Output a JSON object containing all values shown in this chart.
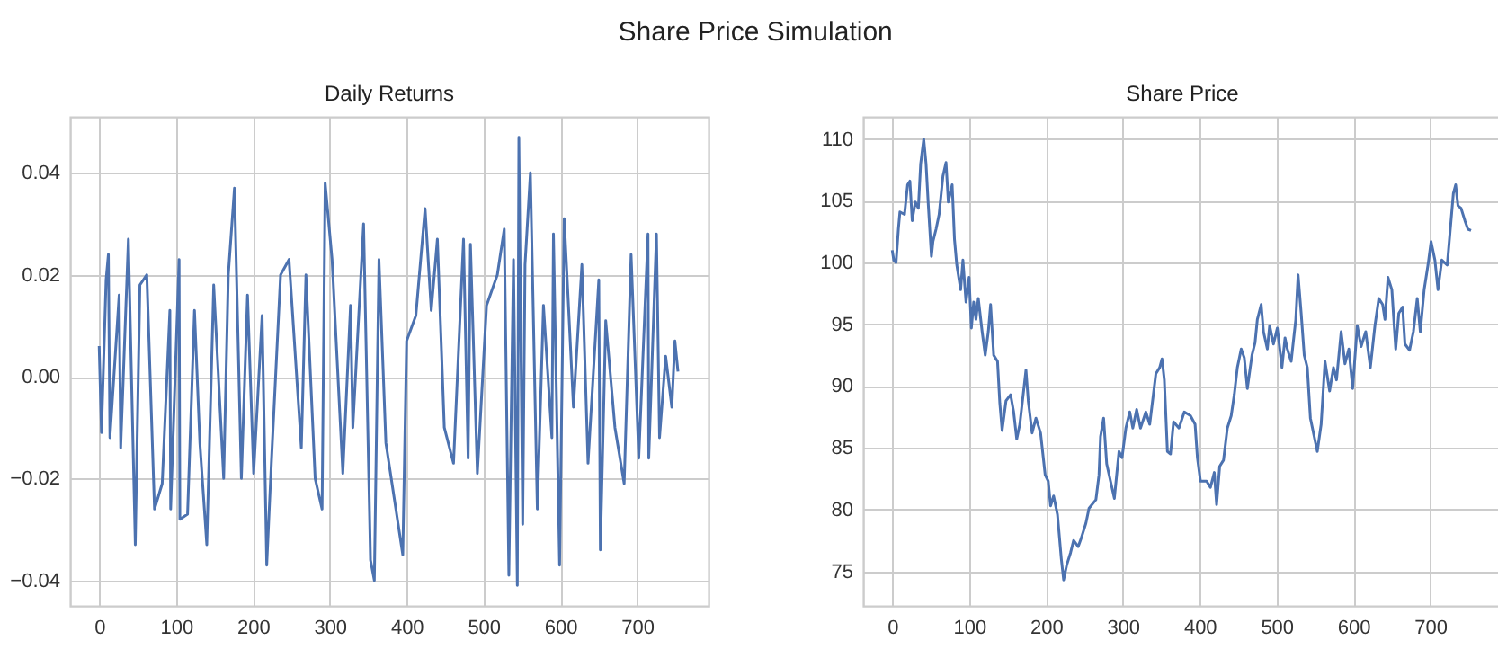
{
  "chart_data": [
    {
      "type": "line",
      "title": "Daily Returns",
      "annotations": [
        "Share Price Simulation"
      ],
      "grid": true,
      "x": [
        0,
        3,
        9,
        12,
        14,
        26,
        28,
        38,
        47,
        53,
        62,
        72,
        82,
        92,
        93,
        104,
        105,
        115,
        124,
        131,
        140,
        149,
        162,
        168,
        176,
        185,
        193,
        201,
        212,
        218,
        224,
        236,
        247,
        263,
        269,
        281,
        290,
        294,
        303,
        317,
        327,
        330,
        344,
        353,
        358,
        364,
        373,
        395,
        400,
        412,
        424,
        432,
        440,
        449,
        461,
        474,
        480,
        483,
        492,
        504,
        518,
        527,
        533,
        539,
        544,
        546,
        551,
        554,
        561,
        570,
        578,
        589,
        591,
        599,
        605,
        617,
        628,
        636,
        650,
        652,
        659,
        671,
        683,
        692,
        702,
        714,
        715,
        725,
        729,
        737,
        745,
        749,
        753
      ],
      "series": [
        {
          "color": "#4c72b0",
          "values": [
            0.006,
            -0.011,
            0.019,
            0.024,
            -0.012,
            0.016,
            -0.014,
            0.027,
            -0.033,
            0.018,
            0.02,
            -0.026,
            -0.021,
            0.013,
            -0.026,
            0.023,
            -0.028,
            -0.027,
            0.013,
            -0.013,
            -0.033,
            0.018,
            -0.02,
            0.02,
            0.037,
            -0.02,
            0.016,
            -0.019,
            0.012,
            -0.037,
            -0.017,
            0.02,
            0.023,
            -0.014,
            0.02,
            -0.02,
            -0.026,
            0.038,
            0.023,
            -0.019,
            0.014,
            -0.01,
            0.03,
            -0.036,
            -0.04,
            0.023,
            -0.013,
            -0.035,
            0.007,
            0.012,
            0.033,
            0.013,
            0.027,
            -0.01,
            -0.017,
            0.027,
            -0.016,
            0.026,
            -0.019,
            0.014,
            0.02,
            0.029,
            -0.039,
            0.023,
            -0.041,
            0.047,
            -0.029,
            0.022,
            0.04,
            -0.026,
            0.014,
            -0.012,
            0.028,
            -0.037,
            0.031,
            -0.006,
            0.022,
            -0.017,
            0.019,
            -0.034,
            0.011,
            -0.01,
            -0.021,
            0.024,
            -0.016,
            0.028,
            -0.016,
            0.028,
            -0.012,
            0.004,
            -0.006,
            0.007,
            0.001
          ]
        }
      ],
      "xlim": [
        -37.75,
        792.75
      ],
      "xticks": [
        0,
        100,
        200,
        300,
        400,
        500,
        600,
        700
      ],
      "ylim": [
        -0.045,
        0.051
      ],
      "yticks": [
        {
          "value": -0.04,
          "label": "−0.04"
        },
        {
          "value": -0.02,
          "label": "−0.02"
        },
        {
          "value": 0,
          "label": "0.00"
        },
        0.02,
        0.04
      ]
    },
    {
      "type": "line",
      "title": "Share Price",
      "grid": true,
      "x": [
        0,
        2,
        5,
        8,
        10,
        16,
        20,
        23,
        26,
        30,
        34,
        37,
        41,
        44,
        47,
        51,
        53,
        57,
        61,
        66,
        70,
        73,
        78,
        81,
        84,
        89,
        92,
        96,
        100,
        103,
        106,
        109,
        112,
        117,
        121,
        125,
        128,
        132,
        137,
        140,
        143,
        148,
        154,
        158,
        162,
        166,
        174,
        177,
        182,
        187,
        193,
        199,
        203,
        206,
        210,
        215,
        220,
        223,
        227,
        232,
        236,
        242,
        246,
        252,
        256,
        265,
        269,
        271,
        275,
        279,
        284,
        289,
        295,
        299,
        304,
        309,
        313,
        318,
        323,
        330,
        335,
        343,
        348,
        351,
        354,
        358,
        362,
        366,
        373,
        380,
        388,
        394,
        397,
        401,
        409,
        414,
        419,
        422,
        426,
        431,
        436,
        441,
        445,
        449,
        454,
        458,
        462,
        468,
        472,
        475,
        480,
        483,
        488,
        491,
        496,
        501,
        507,
        511,
        514,
        519,
        525,
        528,
        532,
        536,
        540,
        544,
        549,
        553,
        558,
        563,
        569,
        574,
        578,
        584,
        589,
        594,
        599,
        605,
        610,
        616,
        622,
        628,
        633,
        638,
        641,
        645,
        650,
        655,
        659,
        664,
        667,
        673,
        678,
        683,
        687,
        692,
        697,
        701,
        706,
        710,
        715,
        722,
        726,
        730,
        733,
        736,
        740,
        745,
        749,
        753
      ],
      "series": [
        {
          "color": "#4c72b0",
          "values": [
            101.0,
            100.2,
            100.0,
            102.7,
            104.1,
            103.9,
            106.3,
            106.6,
            103.4,
            104.9,
            104.4,
            108.0,
            110.0,
            108.0,
            104.6,
            100.5,
            101.7,
            102.7,
            103.9,
            107.0,
            108.1,
            104.9,
            106.3,
            101.9,
            99.8,
            97.8,
            100.2,
            96.8,
            98.8,
            94.7,
            96.8,
            95.4,
            97.1,
            94.4,
            92.5,
            94.4,
            96.6,
            92.5,
            92.0,
            88.6,
            86.4,
            88.8,
            89.3,
            87.9,
            85.7,
            86.9,
            91.3,
            88.8,
            86.2,
            87.4,
            86.2,
            82.8,
            82.3,
            80.3,
            81.1,
            79.6,
            76.0,
            74.3,
            75.5,
            76.5,
            77.5,
            77.0,
            77.7,
            78.9,
            80.1,
            80.8,
            82.8,
            85.9,
            87.4,
            83.7,
            82.3,
            80.9,
            84.7,
            84.2,
            86.6,
            87.9,
            86.6,
            88.1,
            86.6,
            87.9,
            86.9,
            91.0,
            91.5,
            92.2,
            90.5,
            84.7,
            84.5,
            87.1,
            86.6,
            87.9,
            87.6,
            86.9,
            84.2,
            82.3,
            82.3,
            81.8,
            83.0,
            80.4,
            83.5,
            84.0,
            86.6,
            87.6,
            89.3,
            91.5,
            93.0,
            92.3,
            89.8,
            92.5,
            93.5,
            95.4,
            96.6,
            94.4,
            93.0,
            94.9,
            93.4,
            94.7,
            91.5,
            93.9,
            93.0,
            92.0,
            95.4,
            99.0,
            95.9,
            92.5,
            91.5,
            87.4,
            85.9,
            84.7,
            86.9,
            92.0,
            89.6,
            91.5,
            90.5,
            94.4,
            91.8,
            93.0,
            89.8,
            94.9,
            93.2,
            94.4,
            91.5,
            94.9,
            97.1,
            96.6,
            95.4,
            98.8,
            97.8,
            93.0,
            95.9,
            96.4,
            93.4,
            92.9,
            94.4,
            97.1,
            94.4,
            97.8,
            99.8,
            101.7,
            100.2,
            97.8,
            100.2,
            99.8,
            102.7,
            105.6,
            106.3,
            104.6,
            104.4,
            103.4,
            102.7,
            102.6
          ]
        }
      ],
      "xlim": [
        -37.75,
        792.75
      ],
      "xticks": [
        0,
        100,
        200,
        300,
        400,
        500,
        600,
        700
      ],
      "ylim": [
        72.2,
        111.8
      ],
      "yticks": [
        75,
        80,
        85,
        90,
        95,
        100,
        105,
        110
      ]
    }
  ]
}
